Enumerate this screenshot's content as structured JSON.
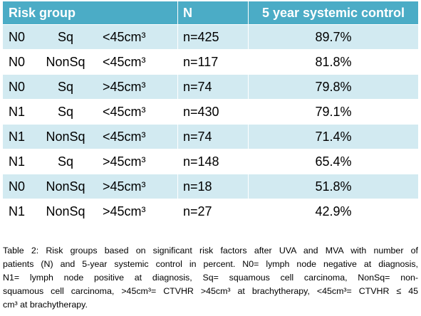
{
  "table": {
    "headers": [
      "Risk group",
      "N",
      "5 year systemic control"
    ],
    "rows": [
      [
        "N0",
        "Sq",
        "<45cm³",
        "n=425",
        "89.7%"
      ],
      [
        "N0",
        "NonSq",
        "<45cm³",
        "n=117",
        "81.8%"
      ],
      [
        "N0",
        "Sq",
        ">45cm³",
        "n=74",
        "79.8%"
      ],
      [
        "N1",
        "Sq",
        "<45cm³",
        "n=430",
        "79.1%"
      ],
      [
        "N1",
        "NonSq",
        "<45cm³",
        "n=74",
        "71.4%"
      ],
      [
        "N1",
        "Sq",
        ">45cm³",
        "n=148",
        "65.4%"
      ],
      [
        "N0",
        "NonSq",
        ">45cm³",
        "n=18",
        "51.8%"
      ],
      [
        "N1",
        "NonSq",
        ">45cm³",
        "n=27",
        "42.9%"
      ]
    ]
  },
  "caption": {
    "lines": [
      "Table 2: Risk groups based on significant risk factors after UVA and MVA with number of",
      "patients (N) and 5-year systemic control in percent. N0= lymph node negative at diagnosis,",
      "N1= lymph node positive at diagnosis, Sq= squamous cell carcinoma, NonSq= non-",
      "squamous cell carcinoma, >45cm³= CTVHR >45cm³ at brachytherapy, <45cm³= CTVHR ≤ 45",
      "cm³ at brachytherapy."
    ]
  }
}
